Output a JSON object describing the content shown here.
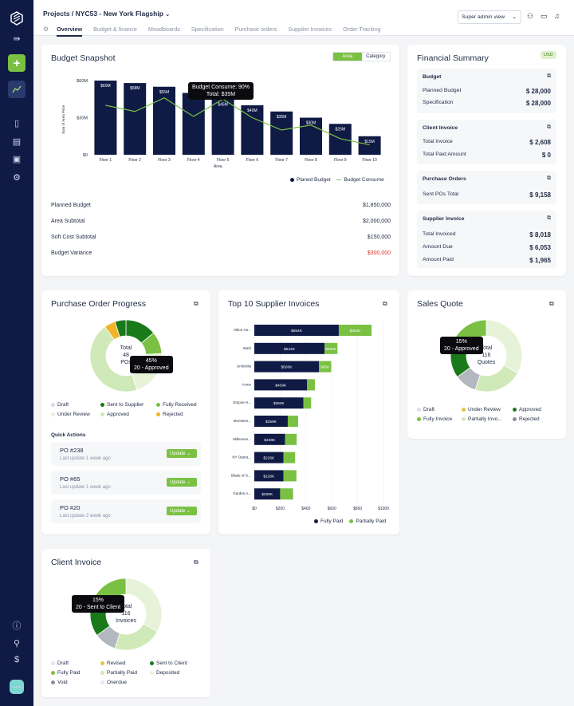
{
  "nav": {
    "breadcrumb_root": "Projects",
    "breadcrumb_sep": "/",
    "breadcrumb_project": "NYC53 - New York Flagship",
    "view_select": "Super admin view",
    "tabs": [
      "Overview",
      "Budget & finance",
      "Moodboards",
      "Specification",
      "Purchase orders",
      "Supplier Invoices",
      "Order Tracking"
    ]
  },
  "budget": {
    "title": "Budget Snapshot",
    "toggle_area": "Area",
    "toggle_category": "Category",
    "tooltip_line1": "Budget Consume: 90%",
    "tooltip_line2": "Total: $35M",
    "legend_planned": "Planed Budget",
    "legend_consume": "Budget Consume",
    "rows": [
      {
        "label": "Planned Budget",
        "value": "$1,850,000"
      },
      {
        "label": "Area Subtotal",
        "value": "$2,000,000"
      },
      {
        "label": "Soft Cost Subtotal",
        "value": "$150,000"
      },
      {
        "label": "Budget Variance",
        "value": "$300,000"
      }
    ]
  },
  "chart_data": [
    {
      "type": "bar",
      "xlabel": "Area",
      "ylabel": "Sum of Area Price",
      "ylim": [
        0,
        60
      ],
      "yticks": [
        "$0",
        "$30M",
        "$60M"
      ],
      "categories": [
        "Floor 1",
        "Floor 2",
        "Floor 3",
        "Floor 4",
        "Floor 5",
        "Floor 6",
        "Floor 7",
        "Floor 8",
        "Floor 9",
        "Floor 10"
      ],
      "series": [
        {
          "name": "Planed Budget",
          "values": [
            60,
            58,
            55,
            50,
            45,
            40,
            35,
            30,
            25,
            15
          ],
          "labels": [
            "$60M",
            "$58M",
            "$55M",
            "$50M",
            "$45M",
            "$40M",
            "$35M",
            "$30M",
            "$25M",
            "$15M"
          ]
        },
        {
          "name": "Budget Consume",
          "values": [
            40,
            35,
            46,
            31,
            45,
            30,
            20,
            24,
            13,
            8
          ]
        }
      ],
      "colors": {
        "bar": "#0f1a45",
        "line": "#7ac143"
      }
    },
    {
      "type": "bar",
      "orientation": "horizontal",
      "stacked": true,
      "categories": [
        "Hilton Ho...",
        "Stark",
        "Umbrella",
        "Acme",
        "Empire H...",
        "Monsters...",
        "Millenium...",
        "NY Opera...",
        "Blade of G...",
        "Garden A..."
      ],
      "xticks": [
        "$0",
        "$200",
        "$400",
        "$600",
        "$800",
        "$1000"
      ],
      "xlim": [
        0,
        1000
      ],
      "series": [
        {
          "name": "Fully Paid",
          "values": [
            654,
            544,
            500,
            409,
            380,
            259,
            238,
            226,
            226,
            200
          ],
          "labels": [
            "$654K",
            "$544K",
            "$500K",
            "$409K",
            "$380K",
            "$259K",
            "$238K",
            "$226K",
            "$226K",
            "$200K"
          ]
        },
        {
          "name": "Partially Paid",
          "values": [
            254,
            100,
            95,
            60,
            60,
            80,
            90,
            90,
            100,
            100
          ],
          "labels": [
            "$254K",
            "$100K",
            "$95K",
            "",
            "",
            "",
            "",
            "",
            "",
            ""
          ]
        }
      ],
      "colors": {
        "Fully Paid": "#0f1a45",
        "Partially Paid": "#7ac143"
      }
    }
  ],
  "financial": {
    "title": "Financial Summary",
    "currency": "USD",
    "sections": [
      {
        "head": "Budget",
        "rows": [
          {
            "label": "Planned Budget",
            "value": "$ 28,000"
          },
          {
            "label": "Specification",
            "value": "$ 28,000"
          }
        ]
      },
      {
        "head": "Client Invoice",
        "rows": [
          {
            "label": "Total Invoice",
            "value": "$ 2,608"
          },
          {
            "label": "Total Paid Amount",
            "value": "$ 0"
          }
        ]
      },
      {
        "head": "Purchase Orders",
        "rows": [
          {
            "label": "Sent POs Total",
            "value": "$ 9,158"
          }
        ]
      },
      {
        "head": "Supplier Invoice",
        "rows": [
          {
            "label": "Total Invoiced",
            "value": "$ 8,018"
          },
          {
            "label": "Amount Due",
            "value": "$ 6,053"
          },
          {
            "label": "Amount Paid",
            "value": "$ 1,965"
          }
        ]
      }
    ]
  },
  "po": {
    "title": "Purchase Order Progress",
    "center_label": "Total",
    "center_count": "48",
    "center_unit": "POs",
    "tooltip_line1": "45%",
    "tooltip_line2": "20 - Approved",
    "donut": [
      {
        "name": "Draft",
        "value": 0,
        "color": "#d9dde5"
      },
      {
        "name": "Sent to Supplier",
        "value": 14,
        "color": "#1a7a1a"
      },
      {
        "name": "Fully Received",
        "value": 10,
        "color": "#7ac143"
      },
      {
        "name": "Under Review",
        "value": 21,
        "color": "#e6f3d8"
      },
      {
        "name": "Approved",
        "value": 45,
        "color": "#cfe9b8"
      },
      {
        "name": "Rejected",
        "value": 5,
        "color": "#f0b429"
      },
      {
        "name": "Sent to Supplier b",
        "value": 5,
        "color": "#1a7a1a"
      }
    ],
    "legend": [
      "Draft",
      "Sent to Supplier",
      "Fully Received",
      "Under Review",
      "Approved",
      "Rejected"
    ],
    "legend_colors": [
      "#d9dde5",
      "#1a7a1a",
      "#7ac143",
      "#e6f3d8",
      "#cfe9b8",
      "#f0b429"
    ],
    "quick_actions_label": "Quick Actions",
    "update_label": "Update",
    "items": [
      {
        "name": "PO #238",
        "sub": "Last update 1 week ago"
      },
      {
        "name": "PO #65",
        "sub": "Last update 1 week ago"
      },
      {
        "name": "PO #20",
        "sub": "Last update 2 week ago"
      }
    ]
  },
  "suppliers": {
    "title": "Top 10 Supplier Invoices",
    "legend": [
      "Fully Paid",
      "Partially Paid"
    ]
  },
  "sales": {
    "title": "Sales Quote",
    "center_label": "Total",
    "center_count": "116",
    "center_unit": "Quotes",
    "tooltip_line1": "15%",
    "tooltip_line2": "20 - Approved",
    "donut": [
      {
        "name": "Under Review",
        "value": 33,
        "color": "#e6f3d8"
      },
      {
        "name": "Partially Invoiced",
        "value": 22,
        "color": "#cfe9b8"
      },
      {
        "name": "Rejected",
        "value": 10,
        "color": "#b3b7be"
      },
      {
        "name": "Approved",
        "value": 15,
        "color": "#1a7a1a"
      },
      {
        "name": "Fully Invoice",
        "value": 20,
        "color": "#7ac143"
      }
    ],
    "legend": [
      "Draft",
      "Under Review",
      "Approved",
      "Fully Invoice",
      "Partially Invo...",
      "Rejected"
    ],
    "legend_colors": [
      "#d9dde5",
      "#e6c14a",
      "#1a7a1a",
      "#7ac143",
      "#cfe9b8",
      "#8a8f98"
    ]
  },
  "client": {
    "title": "Client Invoice",
    "center_label": "Total",
    "center_count": "116",
    "center_unit": "Invoices",
    "tooltip_line1": "15%",
    "tooltip_line2": "20 - Sent to Client",
    "donut": [
      {
        "name": "Deposited",
        "value": 33,
        "color": "#e6f3d8"
      },
      {
        "name": "Partially Paid",
        "value": 22,
        "color": "#cfe9b8"
      },
      {
        "name": "Void",
        "value": 10,
        "color": "#b3b7be"
      },
      {
        "name": "Sent to Client",
        "value": 15,
        "color": "#1a7a1a"
      },
      {
        "name": "Fully Paid",
        "value": 20,
        "color": "#7ac143"
      }
    ],
    "legend": [
      "Draft",
      "Revised",
      "Sent to Client",
      "Fully Paid",
      "Partially Paid",
      "Deposited",
      "Void",
      "Overdue"
    ],
    "legend_colors": [
      "#e4e6ec",
      "#e6c14a",
      "#1a7a1a",
      "#7ac143",
      "#cfe9b8",
      "#e6f3d8",
      "#8a8f98",
      "#f0e3f5"
    ]
  }
}
